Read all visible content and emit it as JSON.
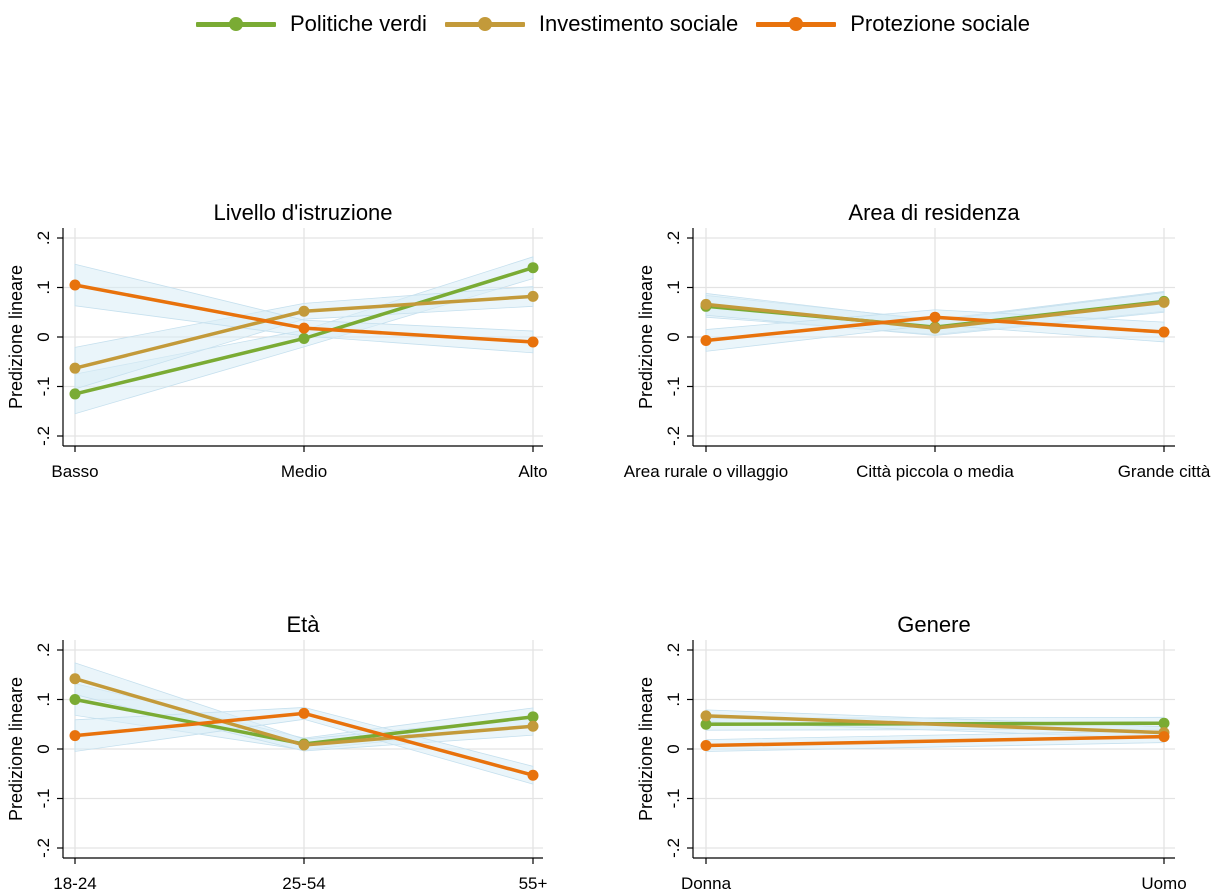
{
  "legend": [
    {
      "name": "Politiche verdi",
      "color": "#7aab34"
    },
    {
      "name": "Investimento sociale",
      "color": "#c39a3a"
    },
    {
      "name": "Protezione sociale",
      "color": "#e8720c"
    }
  ],
  "ci_band_color": "#d9ecf5",
  "chart_data": [
    {
      "type": "line",
      "title": "Livello d'istruzione",
      "ylabel": "Predizione lineare",
      "ylim": [
        -0.2,
        0.2
      ],
      "yticks": [
        {
          "value": -0.2,
          "label": "-.2"
        },
        {
          "value": -0.1,
          "label": "-.1"
        },
        {
          "value": 0,
          "label": "0"
        },
        {
          "value": 0.1,
          "label": ".1"
        },
        {
          "value": 0.2,
          "label": ".2"
        }
      ],
      "categories": [
        "Basso",
        "Medio",
        "Alto"
      ],
      "grid": true,
      "series": [
        {
          "name": "Politiche verdi",
          "values": [
            -0.115,
            -0.003,
            0.14
          ],
          "ci_low": [
            -0.155,
            -0.02,
            0.118
          ],
          "ci_high": [
            -0.075,
            0.014,
            0.162
          ]
        },
        {
          "name": "Investimento sociale",
          "values": [
            -0.063,
            0.052,
            0.082
          ],
          "ci_low": [
            -0.105,
            0.036,
            0.062
          ],
          "ci_high": [
            -0.021,
            0.068,
            0.102
          ]
        },
        {
          "name": "Protezione sociale",
          "values": [
            0.105,
            0.018,
            -0.01
          ],
          "ci_low": [
            0.063,
            0.002,
            -0.032
          ],
          "ci_high": [
            0.147,
            0.034,
            0.012
          ]
        }
      ]
    },
    {
      "type": "line",
      "title": "Area di residenza",
      "ylabel": "Predizione lineare",
      "ylim": [
        -0.2,
        0.2
      ],
      "yticks": [
        {
          "value": -0.2,
          "label": "-.2"
        },
        {
          "value": -0.1,
          "label": "-.1"
        },
        {
          "value": 0,
          "label": "0"
        },
        {
          "value": 0.1,
          "label": ".1"
        },
        {
          "value": 0.2,
          "label": ".2"
        }
      ],
      "categories": [
        "Area rurale o villaggio",
        "Città piccola o media",
        "Grande città"
      ],
      "grid": true,
      "series": [
        {
          "name": "Politiche verdi",
          "values": [
            0.062,
            0.02,
            0.072
          ],
          "ci_low": [
            0.04,
            0.005,
            0.052
          ],
          "ci_high": [
            0.084,
            0.035,
            0.092
          ]
        },
        {
          "name": "Investimento sociale",
          "values": [
            0.066,
            0.018,
            0.07
          ],
          "ci_low": [
            0.044,
            0.003,
            0.05
          ],
          "ci_high": [
            0.088,
            0.033,
            0.09
          ]
        },
        {
          "name": "Protezione sociale",
          "values": [
            -0.007,
            0.04,
            0.01
          ],
          "ci_low": [
            -0.029,
            0.025,
            -0.01
          ],
          "ci_high": [
            0.015,
            0.055,
            0.03
          ]
        }
      ]
    },
    {
      "type": "line",
      "title": "Età",
      "ylabel": "Predizione lineare",
      "ylim": [
        -0.2,
        0.2
      ],
      "yticks": [
        {
          "value": -0.2,
          "label": "-.2"
        },
        {
          "value": -0.1,
          "label": "-.1"
        },
        {
          "value": 0,
          "label": "0"
        },
        {
          "value": 0.1,
          "label": ".1"
        },
        {
          "value": 0.2,
          "label": ".2"
        }
      ],
      "categories": [
        "18-24",
        "25-54",
        "55+"
      ],
      "grid": true,
      "series": [
        {
          "name": "Politiche verdi",
          "values": [
            0.1,
            0.01,
            0.065
          ],
          "ci_low": [
            0.068,
            -0.002,
            0.047
          ],
          "ci_high": [
            0.132,
            0.022,
            0.083
          ]
        },
        {
          "name": "Investimento sociale",
          "values": [
            0.142,
            0.008,
            0.046
          ],
          "ci_low": [
            0.11,
            -0.004,
            0.028
          ],
          "ci_high": [
            0.174,
            0.02,
            0.064
          ]
        },
        {
          "name": "Protezione sociale",
          "values": [
            0.027,
            0.072,
            -0.053
          ],
          "ci_low": [
            -0.005,
            0.06,
            -0.071
          ],
          "ci_high": [
            0.059,
            0.084,
            -0.035
          ]
        }
      ]
    },
    {
      "type": "line",
      "title": "Genere",
      "ylabel": "Predizione lineare",
      "ylim": [
        -0.2,
        0.2
      ],
      "yticks": [
        {
          "value": -0.2,
          "label": "-.2"
        },
        {
          "value": -0.1,
          "label": "-.1"
        },
        {
          "value": 0,
          "label": "0"
        },
        {
          "value": 0.1,
          "label": ".1"
        },
        {
          "value": 0.2,
          "label": ".2"
        }
      ],
      "categories": [
        "Donna",
        "Uomo"
      ],
      "grid": true,
      "series": [
        {
          "name": "Politiche verdi",
          "values": [
            0.05,
            0.052
          ],
          "ci_low": [
            0.038,
            0.04
          ],
          "ci_high": [
            0.062,
            0.064
          ]
        },
        {
          "name": "Investimento sociale",
          "values": [
            0.067,
            0.033
          ],
          "ci_low": [
            0.055,
            0.021
          ],
          "ci_high": [
            0.079,
            0.045
          ]
        },
        {
          "name": "Protezione sociale",
          "values": [
            0.007,
            0.025
          ],
          "ci_low": [
            -0.005,
            0.013
          ],
          "ci_high": [
            0.019,
            0.037
          ]
        }
      ]
    }
  ]
}
